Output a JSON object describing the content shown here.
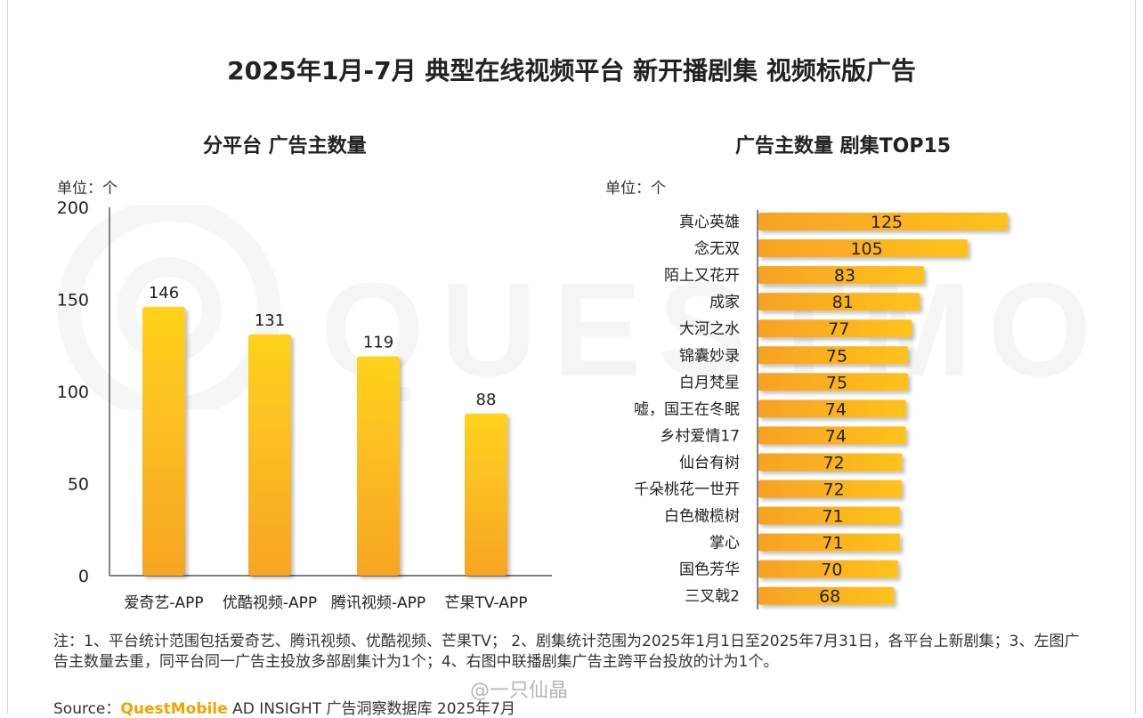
{
  "title": "2025年1月-7月 典型在线视频平台 新开播剧集 视频标版广告",
  "colors": {
    "bar_top": "#ffd21e",
    "bar_bottom": "#f7a524",
    "hbar_left": "#f7a224",
    "hbar_right": "#ffc21a",
    "axis": "#333333"
  },
  "chart_data": [
    {
      "type": "bar",
      "title": "分平台 广告主数量",
      "unit_label": "单位：个",
      "categories": [
        "爱奇艺-APP",
        "优酷视频-APP",
        "腾讯视频-APP",
        "芒果TV-APP"
      ],
      "values": [
        146,
        131,
        119,
        88
      ],
      "ylim": [
        0,
        200
      ],
      "yticks": [
        0,
        50,
        100,
        150,
        200
      ],
      "xlabel": "",
      "ylabel": ""
    },
    {
      "type": "bar",
      "orientation": "horizontal",
      "title": "广告主数量 剧集TOP15",
      "unit_label": "单位：个",
      "categories": [
        "真心英雄",
        "念无双",
        "陌上又花开",
        "成家",
        "大河之水",
        "锦囊妙录",
        "白月梵星",
        "嘘，国王在冬眠",
        "乡村爱情17",
        "仙台有树",
        "千朵桃花一世开",
        "白色橄榄树",
        "掌心",
        "国色芳华",
        "三叉戟2"
      ],
      "values": [
        125,
        105,
        83,
        81,
        77,
        75,
        75,
        74,
        74,
        72,
        72,
        71,
        71,
        70,
        68
      ]
    }
  ],
  "watermark_text": "QUESTMOBILE",
  "footnote": "注：1、平台统计范围包括爱奇艺、腾讯视频、优酷视频、芒果TV；  2、剧集统计范围为2025年1月1日至2025年7月31日，各平台上新剧集；3、左图广告主数量去重，同平台同一广告主投放多部剧集计为1个；4、右图中联播剧集广告主跨平台投放的计为1个。",
  "source": {
    "label": "Source：",
    "brand": "QuestMobile",
    "rest": " AD INSIGHT 广告洞察数据库 2025年7月"
  },
  "weibo_mark": "@一只仙晶"
}
